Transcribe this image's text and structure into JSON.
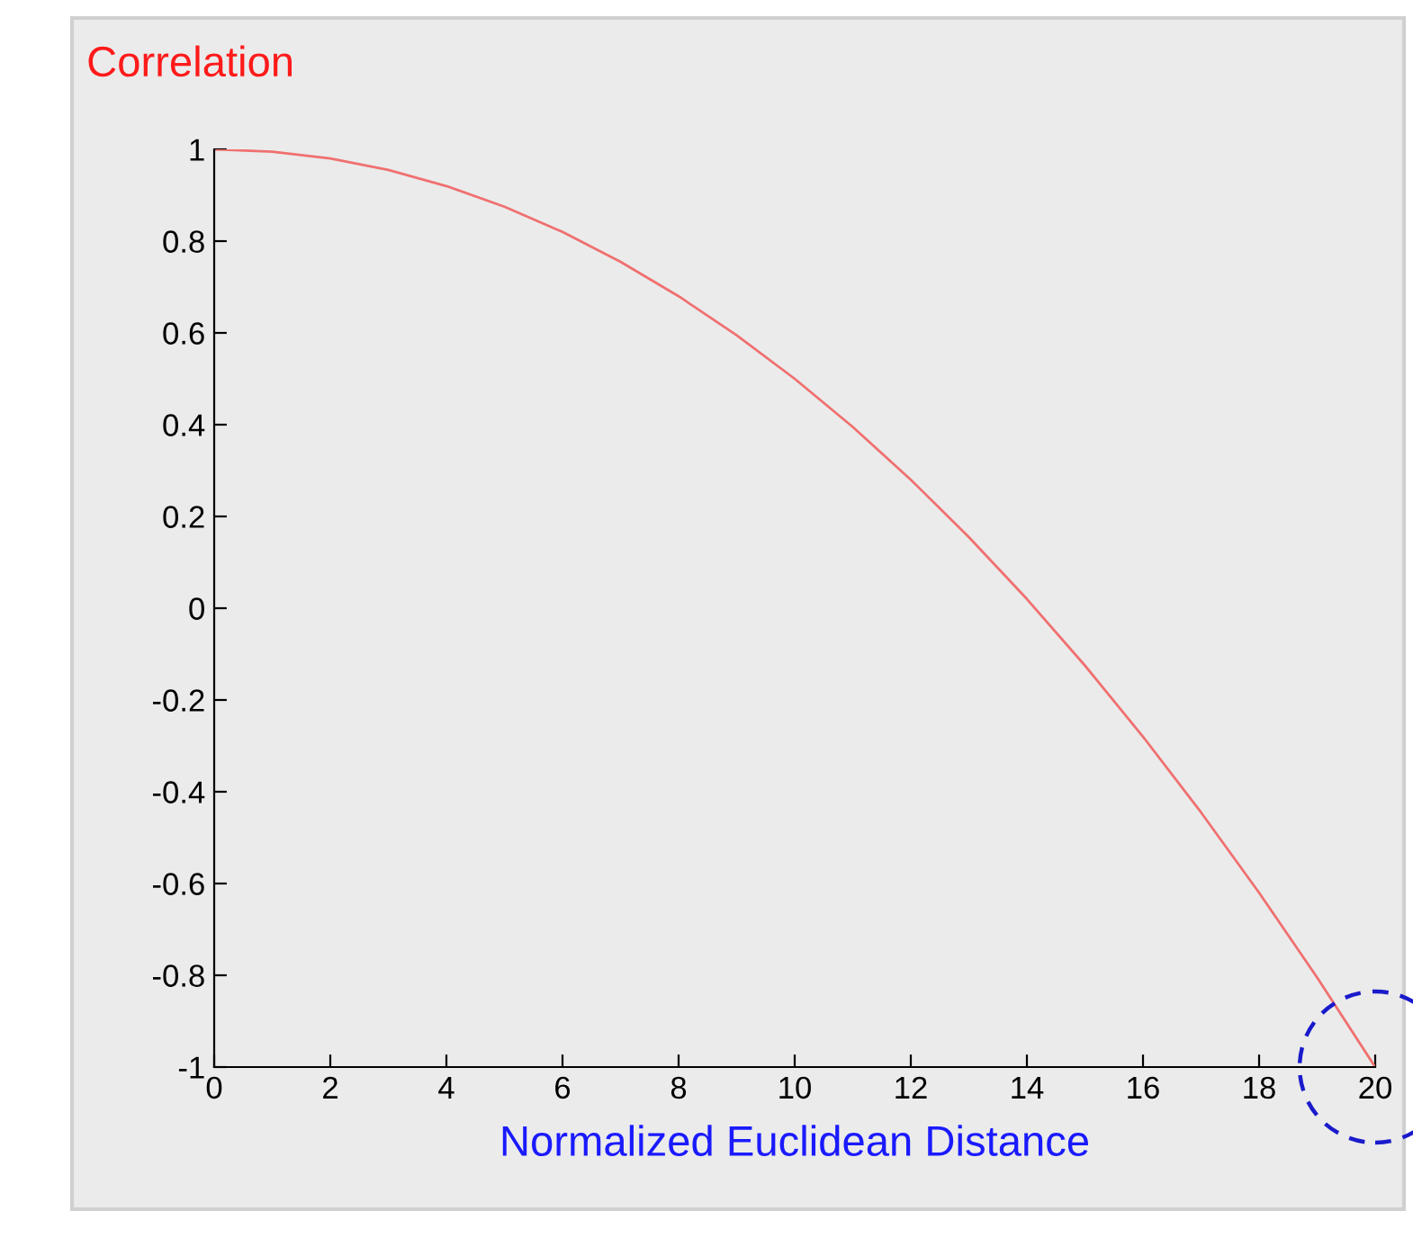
{
  "chart_data": {
    "type": "line",
    "ylabel": "Correlation",
    "xlabel": "Normalized Euclidean Distance",
    "x": [
      0,
      1,
      2,
      3,
      4,
      5,
      6,
      7,
      8,
      9,
      10,
      11,
      12,
      13,
      14,
      15,
      16,
      17,
      18,
      19,
      20
    ],
    "series": [
      {
        "color": "#f07070",
        "values": [
          1,
          0.995,
          0.98,
          0.955,
          0.92,
          0.875,
          0.82,
          0.755,
          0.68,
          0.595,
          0.5,
          0.395,
          0.28,
          0.155,
          0.02,
          -0.125,
          -0.28,
          -0.445,
          -0.62,
          -0.805,
          -1
        ]
      }
    ],
    "xlim": [
      0,
      20
    ],
    "xticks": [
      0,
      2,
      4,
      6,
      8,
      10,
      12,
      14,
      16,
      18,
      20
    ],
    "ylim": [
      -1,
      1
    ],
    "yticks": [
      -1,
      -0.8,
      -0.6,
      -0.4,
      -0.2,
      0,
      0.2,
      0.4,
      0.6,
      0.8,
      1
    ],
    "grid": false,
    "legend": false,
    "marker": "none",
    "line_style": "solid"
  }
}
